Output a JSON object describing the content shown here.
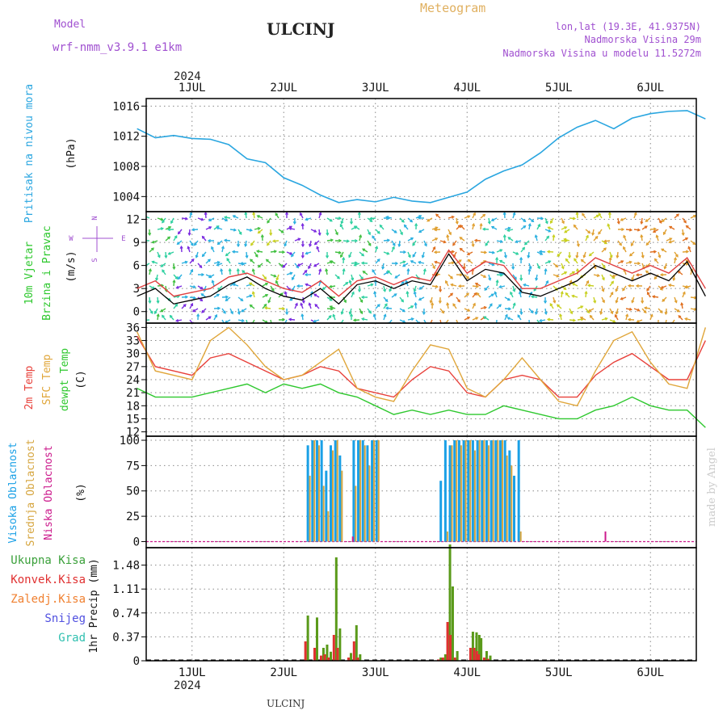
{
  "header": {
    "model_label": "Model",
    "model_name": "wrf-nmm_v3.9.1 e1km",
    "station": "ULCINJ",
    "meteogram_label": "Meteogram",
    "coords": "lon,lat (19.3E, 41.9375N)",
    "elevation": "Nadmorska Visina 29m",
    "model_elevation": "Nadmorska Visina u modelu 11.5272m",
    "year_top": "2024",
    "year_bottom": "2024",
    "footer_station": "ULCINJ",
    "credit": "made by Angel"
  },
  "colors": {
    "pressure": "#2aa6e0",
    "t2m": "#e8403a",
    "sfc": "#e0a63a",
    "dewpt": "#2ec82e",
    "cloud_high": "#1aa0e6",
    "cloud_mid": "#d6a640",
    "cloud_low": "#cc1a8c",
    "precip_total": "#5a9a1a",
    "precip_conv": "#e03030",
    "title_purple": "#a050d0",
    "wind_speed": "#000000",
    "wind_gust": "#e04040"
  },
  "chart_data": [
    {
      "type": "line",
      "name": "pressure",
      "ylabel_1": "Pritisak na nivou mora",
      "unit": "(hPa)",
      "ylim": [
        1002,
        1017
      ],
      "yticks": [
        1004,
        1008,
        1012,
        1016
      ],
      "xticks": [
        "1JUL",
        "2JUL",
        "3JUL",
        "4JUL",
        "5JUL",
        "6JUL"
      ],
      "x_days": [
        0.4,
        0.6,
        0.8,
        1.0,
        1.2,
        1.4,
        1.6,
        1.8,
        2.0,
        2.2,
        2.4,
        2.6,
        2.8,
        3.0,
        3.2,
        3.4,
        3.6,
        3.8,
        4.0,
        4.2,
        4.4,
        4.6,
        4.8,
        5.0,
        5.2,
        5.4,
        5.6,
        5.8,
        6.0,
        6.2,
        6.4,
        6.6
      ],
      "values": [
        1013.0,
        1011.8,
        1012.1,
        1011.7,
        1011.6,
        1010.9,
        1009.0,
        1008.5,
        1006.5,
        1005.5,
        1004.2,
        1003.2,
        1003.6,
        1003.3,
        1003.9,
        1003.4,
        1003.2,
        1003.9,
        1004.6,
        1006.3,
        1007.4,
        1008.2,
        1009.8,
        1011.8,
        1013.2,
        1014.1,
        1013.0,
        1014.4,
        1015.0,
        1015.3,
        1015.4,
        1014.3
      ],
      "grid": true
    },
    {
      "type": "line",
      "name": "wind",
      "ylabel_1": "10m Vjetar",
      "ylabel_2": "Brzina i Pravac",
      "unit": "(m/s)",
      "ylim": [
        -1.5,
        13
      ],
      "yticks": [
        0,
        3,
        6,
        9,
        12
      ],
      "compass": [
        "N",
        "W",
        "E",
        "S"
      ],
      "x_days": [
        0.4,
        0.6,
        0.8,
        1.0,
        1.2,
        1.4,
        1.6,
        1.8,
        2.0,
        2.2,
        2.4,
        2.6,
        2.8,
        3.0,
        3.2,
        3.4,
        3.6,
        3.8,
        4.0,
        4.2,
        4.4,
        4.6,
        4.8,
        5.0,
        5.2,
        5.4,
        5.6,
        5.8,
        6.0,
        6.2,
        6.4,
        6.6
      ],
      "speed": [
        2,
        3,
        1,
        1.5,
        2,
        3.5,
        4.5,
        3,
        2,
        1.5,
        3,
        1,
        3.5,
        4,
        3,
        4,
        3.5,
        7.5,
        4,
        5.5,
        5,
        2.5,
        2,
        3,
        4,
        6,
        5,
        4,
        5,
        4,
        6.5,
        2
      ],
      "gust": [
        3,
        4,
        2,
        2.5,
        3,
        4.5,
        5,
        4,
        3,
        2.5,
        4,
        2,
        4,
        4.5,
        3.5,
        4.5,
        4,
        8,
        5,
        6.5,
        6,
        3,
        3,
        4,
        5,
        7,
        6,
        5,
        6,
        5,
        7,
        3
      ],
      "grid": true
    },
    {
      "type": "line",
      "name": "temperature",
      "ylabel_1": "2m Temp",
      "ylabel_2": "SFC Temp",
      "ylabel_3": "dewpt Temp",
      "unit": "(C)",
      "ylim": [
        11,
        37
      ],
      "yticks": [
        12,
        15,
        18,
        21,
        24,
        27,
        30,
        33,
        36
      ],
      "x_days": [
        0.4,
        0.6,
        0.8,
        1.0,
        1.2,
        1.4,
        1.6,
        1.8,
        2.0,
        2.2,
        2.4,
        2.6,
        2.8,
        3.0,
        3.2,
        3.4,
        3.6,
        3.8,
        4.0,
        4.2,
        4.4,
        4.6,
        4.8,
        5.0,
        5.2,
        5.4,
        5.6,
        5.8,
        6.0,
        6.2,
        6.4,
        6.6
      ],
      "series": [
        {
          "name": "2m Temp",
          "values": [
            34,
            27,
            26,
            25,
            29,
            30,
            28,
            26,
            24,
            25,
            27,
            26,
            22,
            21,
            20,
            24,
            27,
            26,
            21,
            20,
            24,
            25,
            24,
            20,
            20,
            25,
            28,
            30,
            27,
            24,
            24,
            33
          ]
        },
        {
          "name": "SFC Temp",
          "values": [
            35,
            26,
            25,
            24,
            33,
            36,
            32,
            27,
            24,
            25,
            28,
            31,
            22,
            20,
            19,
            26,
            32,
            31,
            22,
            20,
            24,
            29,
            24,
            19,
            18,
            26,
            33,
            35,
            28,
            23,
            22,
            36
          ]
        },
        {
          "name": "dewpt Temp",
          "values": [
            22,
            20,
            20,
            20,
            21,
            22,
            23,
            21,
            23,
            22,
            23,
            21,
            20,
            18,
            16,
            17,
            16,
            17,
            16,
            16,
            18,
            17,
            16,
            15,
            15,
            17,
            18,
            20,
            18,
            17,
            17,
            13
          ]
        }
      ],
      "grid": true
    },
    {
      "type": "bar",
      "name": "clouds",
      "ylabel_1": "Visoka Oblacnost",
      "ylabel_2": "Srednja Oblacnost",
      "ylabel_3": "Niska Oblacnost",
      "unit": "(%)",
      "ylim": [
        -6,
        104
      ],
      "yticks": [
        0,
        25,
        50,
        75,
        100
      ],
      "x_days": [
        2.25,
        2.3,
        2.35,
        2.4,
        2.45,
        2.5,
        2.55,
        2.6,
        2.7,
        2.75,
        2.8,
        2.85,
        2.9,
        2.95,
        3.0,
        3.7,
        3.75,
        3.8,
        3.85,
        3.9,
        3.95,
        4.0,
        4.05,
        4.1,
        4.15,
        4.2,
        4.25,
        4.3,
        4.35,
        4.4,
        4.45,
        4.5,
        4.55
      ],
      "series": [
        {
          "name": "Visoka Oblacnost",
          "values": [
            95,
            100,
            100,
            100,
            70,
            95,
            100,
            85,
            0,
            100,
            100,
            100,
            95,
            100,
            100,
            60,
            100,
            95,
            100,
            100,
            100,
            100,
            100,
            100,
            100,
            100,
            100,
            100,
            100,
            100,
            90,
            65,
            100
          ]
        },
        {
          "name": "Srednja Oblacnost",
          "values": [
            65,
            100,
            95,
            55,
            30,
            90,
            100,
            70,
            0,
            55,
            100,
            95,
            75,
            100,
            100,
            0,
            10,
            95,
            100,
            95,
            100,
            100,
            90,
            100,
            100,
            95,
            100,
            100,
            100,
            85,
            75,
            0,
            10
          ]
        },
        {
          "name": "Niska Oblacnost",
          "values": [
            0,
            0,
            0,
            0,
            0,
            0,
            0,
            0,
            5,
            0,
            0,
            0,
            0,
            0,
            0,
            0,
            0,
            0,
            0,
            0,
            0,
            0,
            0,
            0,
            0,
            0,
            0,
            0,
            0,
            0,
            0,
            0,
            0
          ]
        }
      ],
      "extra_low": {
        "x_day": 5.5,
        "value": 10
      },
      "grid": true
    },
    {
      "type": "bar",
      "name": "precipitation",
      "ylabel_1": "1hr Precip (mm)",
      "legend": [
        "Ukupna Kisa",
        "Konvek.Kisa",
        "Zaledj.Kisa",
        "Snijeg",
        "Grad"
      ],
      "legend_colors": [
        "#3aa03a",
        "#e03030",
        "#f08030",
        "#5050e0",
        "#30c0b0"
      ],
      "ylim": [
        0,
        1.75
      ],
      "yticks": [
        0,
        0.37,
        0.74,
        1.11,
        1.48
      ],
      "ytick_labels": [
        "0",
        "0.37",
        "0.74",
        "1.11",
        "1.48"
      ],
      "x_days": [
        2.25,
        2.35,
        2.42,
        2.46,
        2.5,
        2.56,
        2.6,
        2.72,
        2.78,
        2.82,
        3.7,
        3.75,
        3.8,
        3.83,
        3.88,
        4.05,
        4.09,
        4.12,
        4.14,
        4.2,
        4.24,
        4.28,
        4.32,
        4.36
      ],
      "series": [
        {
          "name": "Ukupna Kisa",
          "values": [
            0.7,
            0.67,
            0.2,
            0.25,
            0.14,
            1.6,
            0.5,
            0.12,
            0.55,
            0.1,
            0.05,
            0.1,
            1.8,
            1.15,
            0.15,
            0.45,
            0.44,
            0.4,
            0.35,
            0.15,
            0.08,
            0.0,
            0.0,
            0.0
          ]
        },
        {
          "name": "Konvek.Kisa",
          "values": [
            0.3,
            0.2,
            0.08,
            0.1,
            0.05,
            0.4,
            0.2,
            0.05,
            0.3,
            0.05,
            0.02,
            0.05,
            0.6,
            0.4,
            0.05,
            0.2,
            0.2,
            0.15,
            0.1,
            0.05,
            0.03,
            0.0,
            0.0,
            0.0
          ]
        }
      ],
      "grid": true
    }
  ]
}
